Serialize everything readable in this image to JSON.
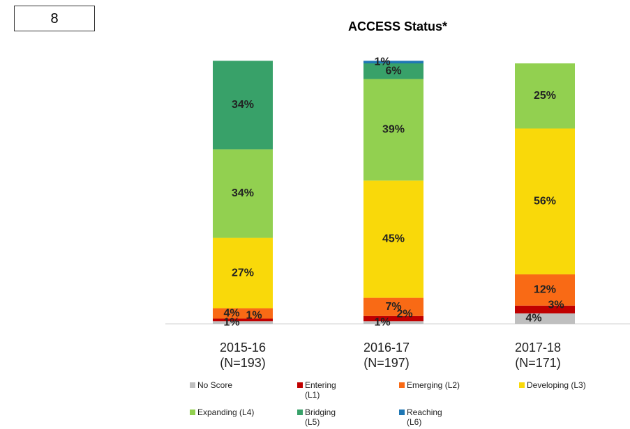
{
  "chart_data": {
    "type": "stacked_bar",
    "title": "ACCESS Status*",
    "badge": "8",
    "categories": [
      "2015-16 (N=193)",
      "2016-17 (N=197)",
      "2017-18 (N=171)"
    ],
    "ylim": [
      0,
      100
    ],
    "series": [
      {
        "name": "No Score",
        "color": "#bfbfbf",
        "values": [
          1,
          1,
          4
        ],
        "value_labels": [
          "1%",
          "1%",
          "4%"
        ]
      },
      {
        "name": "Entering (L1)",
        "color": "#c00000",
        "values": [
          1,
          2,
          3
        ],
        "value_labels": [
          "1%",
          "2%",
          "3%"
        ]
      },
      {
        "name": "Emerging (L2)",
        "color": "#f96a15",
        "values": [
          4,
          7,
          12
        ],
        "value_labels": [
          "4%",
          "7%",
          "12%"
        ]
      },
      {
        "name": "Developing (L3)",
        "color": "#f9d90a",
        "values": [
          27,
          45,
          56
        ],
        "value_labels": [
          "27%",
          "45%",
          "56%"
        ]
      },
      {
        "name": "Expanding (L4)",
        "color": "#92d050",
        "values": [
          34,
          39,
          25
        ],
        "value_labels": [
          "34%",
          "39%",
          "25%"
        ]
      },
      {
        "name": "Bridging (L5)",
        "color": "#38a169",
        "values": [
          34,
          6,
          null
        ],
        "value_labels": [
          "34%",
          "6%",
          null
        ]
      },
      {
        "name": "Reaching (L6)",
        "color": "#1f77b4",
        "values": [
          null,
          1,
          null
        ],
        "value_labels": [
          null,
          "1%",
          null
        ]
      }
    ]
  }
}
